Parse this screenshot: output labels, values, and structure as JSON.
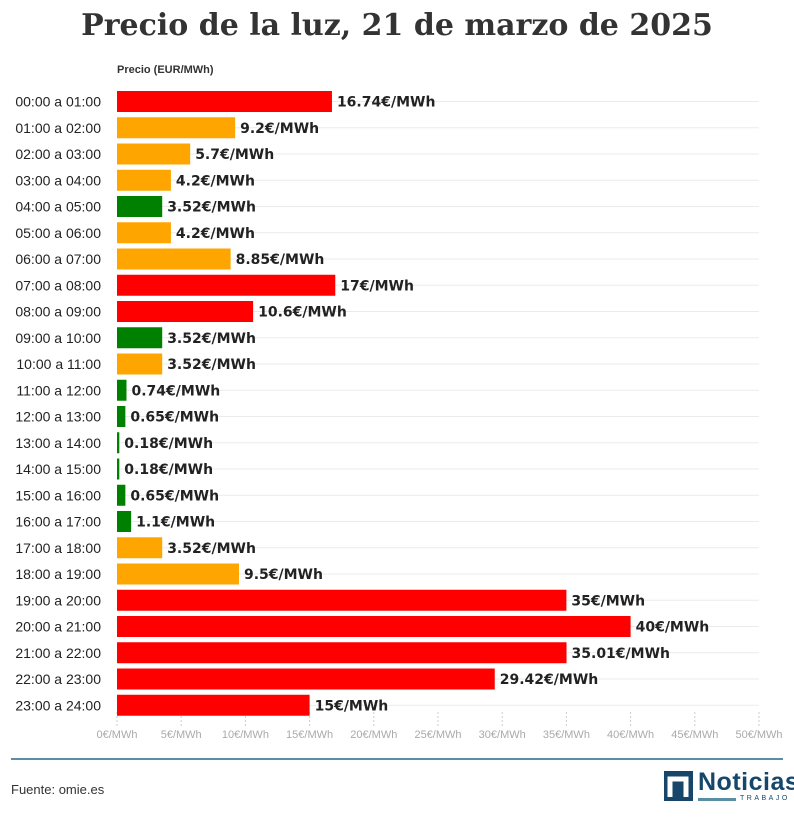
{
  "chart_data": {
    "type": "bar",
    "orientation": "horizontal",
    "title": "Precio de la luz, 21 de marzo de 2025",
    "ylabel": "Precio (EUR/MWh)",
    "categories": [
      "00:00 a 01:00",
      "01:00 a 02:00",
      "02:00 a 03:00",
      "03:00 a 04:00",
      "04:00 a 05:00",
      "05:00 a 06:00",
      "06:00 a 07:00",
      "07:00 a 08:00",
      "08:00 a 09:00",
      "09:00 a 10:00",
      "10:00 a 11:00",
      "11:00 a 12:00",
      "12:00 a 13:00",
      "13:00 a 14:00",
      "14:00 a 15:00",
      "15:00 a 16:00",
      "16:00 a 17:00",
      "17:00 a 18:00",
      "18:00 a 19:00",
      "19:00 a 20:00",
      "20:00 a 21:00",
      "21:00 a 22:00",
      "22:00 a 23:00",
      "23:00 a 24:00"
    ],
    "values": [
      16.74,
      9.2,
      5.7,
      4.2,
      3.52,
      4.2,
      8.85,
      17,
      10.6,
      3.52,
      3.52,
      0.74,
      0.65,
      0.18,
      0.18,
      0.65,
      1.1,
      3.52,
      9.5,
      35,
      40,
      35.01,
      29.42,
      15
    ],
    "value_labels": [
      "16.74€/MWh",
      "9.2€/MWh",
      "5.7€/MWh",
      "4.2€/MWh",
      "3.52€/MWh",
      "4.2€/MWh",
      "8.85€/MWh",
      "17€/MWh",
      "10.6€/MWh",
      "3.52€/MWh",
      "3.52€/MWh",
      "0.74€/MWh",
      "0.65€/MWh",
      "0.18€/MWh",
      "0.18€/MWh",
      "0.65€/MWh",
      "1.1€/MWh",
      "3.52€/MWh",
      "9.5€/MWh",
      "35€/MWh",
      "40€/MWh",
      "35.01€/MWh",
      "29.42€/MWh",
      "15€/MWh"
    ],
    "bar_levels": [
      "high",
      "mid",
      "mid",
      "mid",
      "low",
      "mid",
      "mid",
      "high",
      "high",
      "low",
      "mid",
      "low",
      "low",
      "low",
      "low",
      "low",
      "low",
      "mid",
      "mid",
      "high",
      "high",
      "high",
      "high",
      "high"
    ],
    "level_colors": {
      "high": "#ff0000",
      "mid": "#ffa500",
      "low": "#008000"
    },
    "xlim": [
      0,
      50
    ],
    "x_ticks": [
      0,
      5,
      10,
      15,
      20,
      25,
      30,
      35,
      40,
      45,
      50
    ],
    "x_tick_labels": [
      "0€/MWh",
      "5€/MWh",
      "10€/MWh",
      "15€/MWh",
      "20€/MWh",
      "25€/MWh",
      "30€/MWh",
      "35€/MWh",
      "40€/MWh",
      "45€/MWh",
      "50€/MWh"
    ],
    "grid": true
  },
  "footer": {
    "source": "Fuente: omie.es",
    "logo_name": "Noticias",
    "logo_sub": "TRABAJO"
  }
}
